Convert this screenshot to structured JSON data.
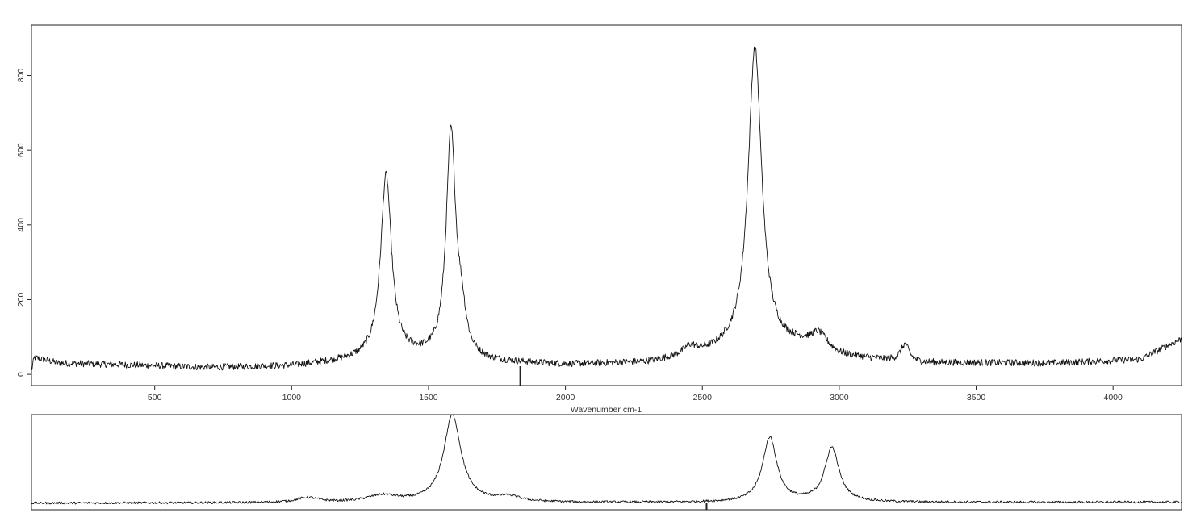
{
  "chart_data": [
    {
      "type": "line",
      "title": "",
      "xlabel": "Wavenumber cm-1",
      "ylabel": "",
      "xlim": [
        50,
        4250
      ],
      "ylim": [
        -30,
        935
      ],
      "x_ticks": [
        500,
        1000,
        1500,
        2000,
        2500,
        3000,
        3500,
        4000
      ],
      "x_tick_labels": [
        "500",
        "1000",
        "1500",
        "2000",
        "2500",
        "3000",
        "3500",
        "4000"
      ],
      "y_ticks": [
        0,
        200,
        400,
        600,
        800
      ],
      "y_tick_labels": [
        "0",
        "200",
        "400",
        "600",
        "800"
      ],
      "grid": false,
      "legend": "none",
      "cursor_x": 1835,
      "series": [
        {
          "baseline": [
            [
              50,
              8
            ],
            [
              60,
              45
            ],
            [
              150,
              30
            ],
            [
              400,
              25
            ],
            [
              700,
              18
            ],
            [
              1000,
              22
            ],
            [
              1200,
              35
            ],
            [
              1450,
              45
            ],
            [
              1700,
              32
            ],
            [
              2000,
              25
            ],
            [
              2300,
              30
            ],
            [
              2600,
              60
            ],
            [
              2850,
              70
            ],
            [
              3000,
              45
            ],
            [
              3300,
              30
            ],
            [
              3800,
              30
            ],
            [
              4100,
              40
            ],
            [
              4250,
              95
            ]
          ],
          "peaks": [
            {
              "center": 1345,
              "height": 490,
              "width": 24
            },
            {
              "center": 1582,
              "height": 600,
              "width": 21
            },
            {
              "center": 1620,
              "height": 90,
              "width": 20
            },
            {
              "center": 2455,
              "height": 22,
              "width": 30
            },
            {
              "center": 2692,
              "height": 810,
              "width": 30
            },
            {
              "center": 2925,
              "height": 45,
              "width": 40
            },
            {
              "center": 3240,
              "height": 45,
              "width": 18
            }
          ],
          "noise": 9
        }
      ]
    },
    {
      "type": "line",
      "title": "",
      "xlabel": "",
      "ylabel": "",
      "x_range": [
        0,
        100
      ],
      "ylim": [
        0,
        100
      ],
      "cursor_x": 58.7,
      "series": [
        {
          "baseline": [
            [
              0,
              7
            ],
            [
              100,
              8
            ]
          ],
          "peaks": [
            {
              "center": 24,
              "height": 5,
              "width": 1.2
            },
            {
              "center": 30.5,
              "height": 7,
              "width": 1.6
            },
            {
              "center": 36.6,
              "height": 92,
              "width": 0.9
            },
            {
              "center": 41.5,
              "height": 5,
              "width": 1.3
            },
            {
              "center": 64.2,
              "height": 68,
              "width": 0.75
            },
            {
              "center": 69.6,
              "height": 57,
              "width": 0.75
            }
          ],
          "noise": 1.2
        }
      ]
    }
  ]
}
